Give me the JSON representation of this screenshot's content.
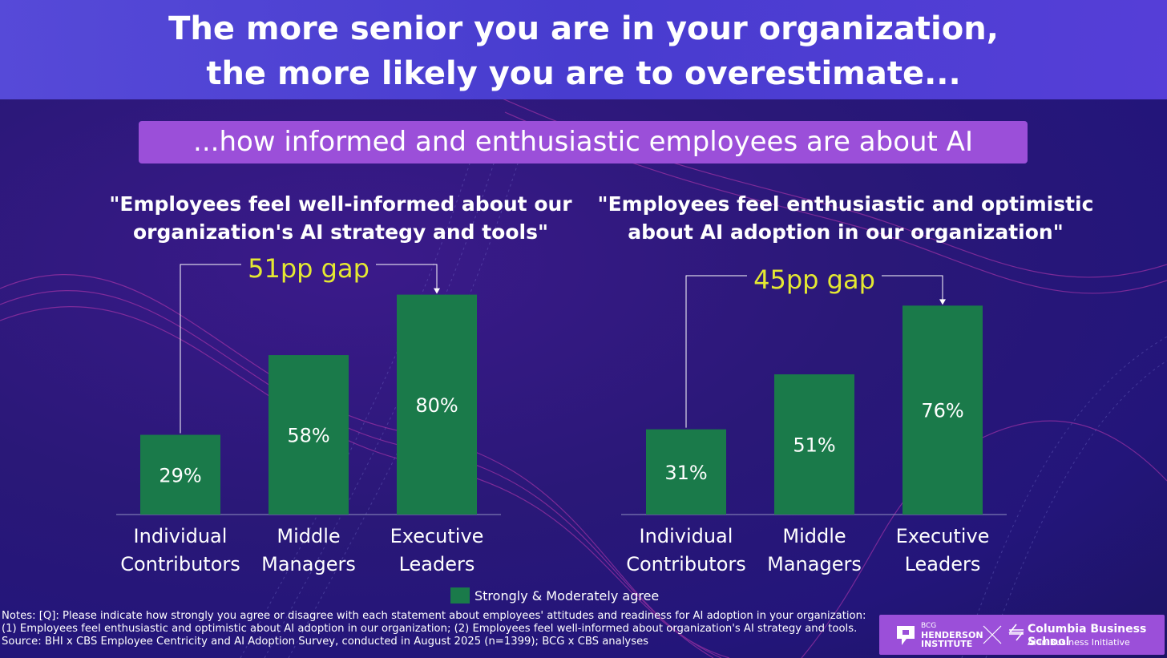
{
  "title_line1": "The more senior you are in your organization,",
  "title_line2": "the more likely you are to overestimate...",
  "subtitle": "...how informed and enthusiastic employees are about AI",
  "colors": {
    "bar": "#1a7a4a",
    "gap": "#e4e832",
    "subtitle_bg": "#9b4fd9",
    "title_band": "#4a3fd6"
  },
  "chart_data": [
    {
      "type": "bar",
      "title_line1": "\"Employees feel well-informed about our",
      "title_line2": "organization's AI strategy and tools\"",
      "categories": [
        [
          "Individual",
          "Contributors"
        ],
        [
          "Middle",
          "Managers"
        ],
        [
          "Executive",
          "Leaders"
        ]
      ],
      "values": [
        29,
        58,
        80
      ],
      "value_labels": [
        "29%",
        "58%",
        "80%"
      ],
      "gap_label": "51pp gap",
      "series_name": "Strongly & Moderately agree",
      "ylim": [
        0,
        100
      ]
    },
    {
      "type": "bar",
      "title_line1": "\"Employees feel enthusiastic and optimistic",
      "title_line2": "about AI adoption in our organization\"",
      "categories": [
        [
          "Individual",
          "Contributors"
        ],
        [
          "Middle",
          "Managers"
        ],
        [
          "Executive",
          "Leaders"
        ]
      ],
      "values": [
        31,
        51,
        76
      ],
      "value_labels": [
        "31%",
        "51%",
        "76%"
      ],
      "gap_label": "45pp gap",
      "series_name": "Strongly & Moderately agree",
      "ylim": [
        0,
        100
      ]
    }
  ],
  "legend_label": "Strongly & Moderately agree",
  "notes": "Notes: [Q]: Please indicate how strongly you agree or disagree with each statement about employees' attitudes and readiness for AI adoption in your organization: (1) Employees feel enthusiastic and optimistic about AI adoption in our organization; (2) Employees feel well-informed about organization's AI strategy and tools. Source: BHI x CBS Employee Centricity and AI Adoption Survey, conducted in August 2025 (n=1399); BCG x CBS analyses",
  "logos": {
    "bcg_line1": "BCG",
    "bcg_line2": "HENDERSON",
    "bcg_line3": "INSTITUTE",
    "cbs_name": "Columbia Business School",
    "cbs_sub": "AI in Business Initiative"
  }
}
